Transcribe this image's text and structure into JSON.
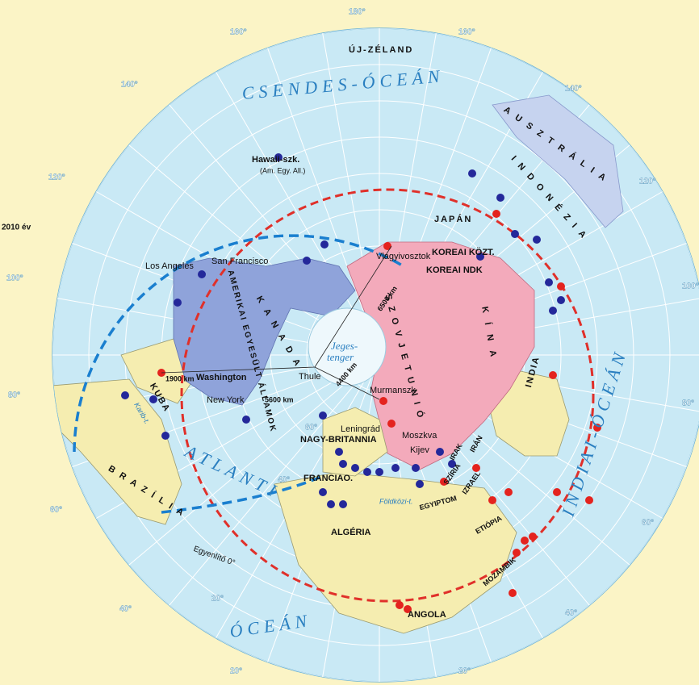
{
  "degrees": {
    "top": "180°",
    "left": [
      "160°",
      "140°",
      "120°",
      "100°",
      "80°",
      "60°",
      "40°",
      "20°"
    ],
    "right": [
      "160°",
      "140°",
      "120°",
      "100°",
      "80°",
      "60°",
      "40°",
      "20°"
    ],
    "inner": [
      "60°",
      "40°",
      "20°"
    ]
  },
  "oceans": {
    "pacific": "CSENDES-ÓCEÁN",
    "indian": "INDIAI-ÓCEÁN",
    "atlantic": "ATLANTI",
    "ocean": "ÓCEÁN",
    "arctic_1": "Jeges-",
    "arctic_2": "tenger"
  },
  "countries": [
    "ÚJ-ZÉLAND",
    "AUSZTRÁLIA",
    "INDONÉZIA",
    "JAPÁN",
    "KOREAI KÖZT.",
    "KOREAI NDK",
    "KÍNA",
    "INDIA",
    "SZOVJETUNIÓ",
    "KANADA",
    "AMERIKAI EGYESÜLT ÁLLAMOK",
    "KUBA",
    "BRAZÍLIA",
    "NAGY-BRITANNIA",
    "FRANCIAO.",
    "ALGÉRIA",
    "EGYIPTOM",
    "SZÍRIA",
    "IZRAEL",
    "IRAK",
    "IRÁN",
    "ETIÓPIA",
    "MOZAMBIK",
    "ANGOLA"
  ],
  "cities": [
    "Los Angeles",
    "San Francisco",
    "Washington",
    "New York",
    "Thule",
    "Murmanszk",
    "Leningrád",
    "Moszkva",
    "Kijev",
    "Vlagyivosztok",
    "Hawaii-szk.",
    "(Am. Egy. All.)"
  ],
  "distances": [
    "1900 km",
    "5600 km",
    "4400 km",
    "6500 km"
  ],
  "misc": {
    "equator": "Egyenlítő 0°",
    "caribbean": "Karib-t.",
    "mediterranean": "Földközi-t.",
    "year": "2010 év"
  }
}
